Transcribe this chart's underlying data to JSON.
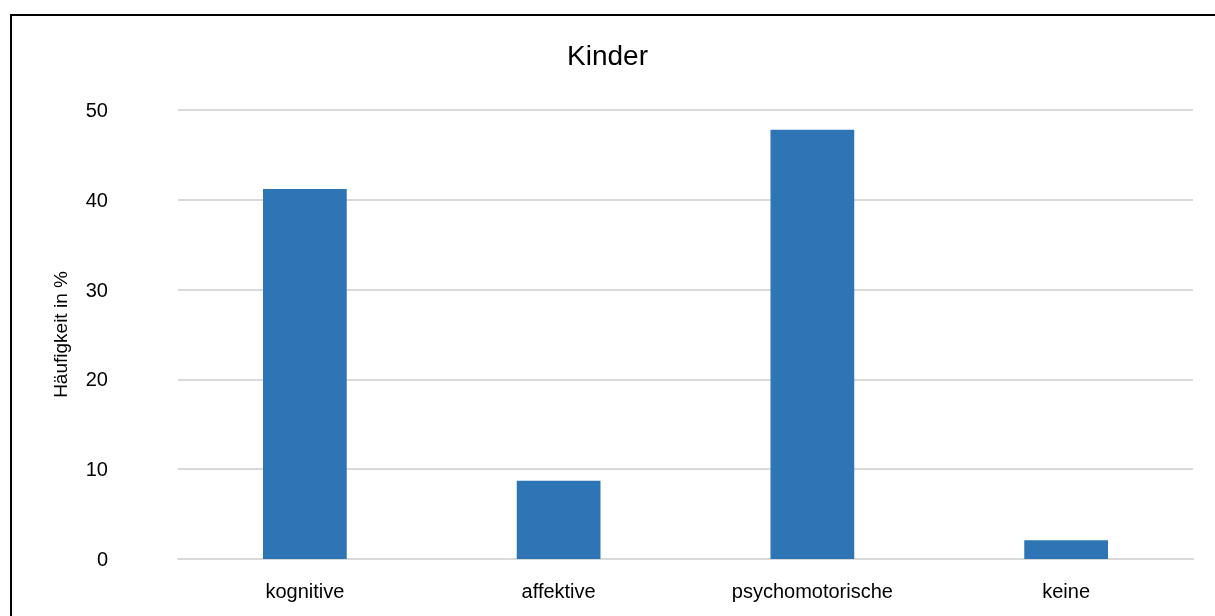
{
  "chart_data": {
    "type": "bar",
    "title": "Kinder",
    "ylabel": "Häufigkeit in %",
    "categories": [
      "kognitive",
      "affektive",
      "psychomotorische",
      "keine"
    ],
    "values": [
      41.2,
      8.7,
      47.8,
      2.1
    ],
    "color": "#2e75b6",
    "ylim": [
      0,
      50
    ],
    "yticks": [
      0,
      10,
      20,
      30,
      40,
      50
    ],
    "grid": "y"
  }
}
